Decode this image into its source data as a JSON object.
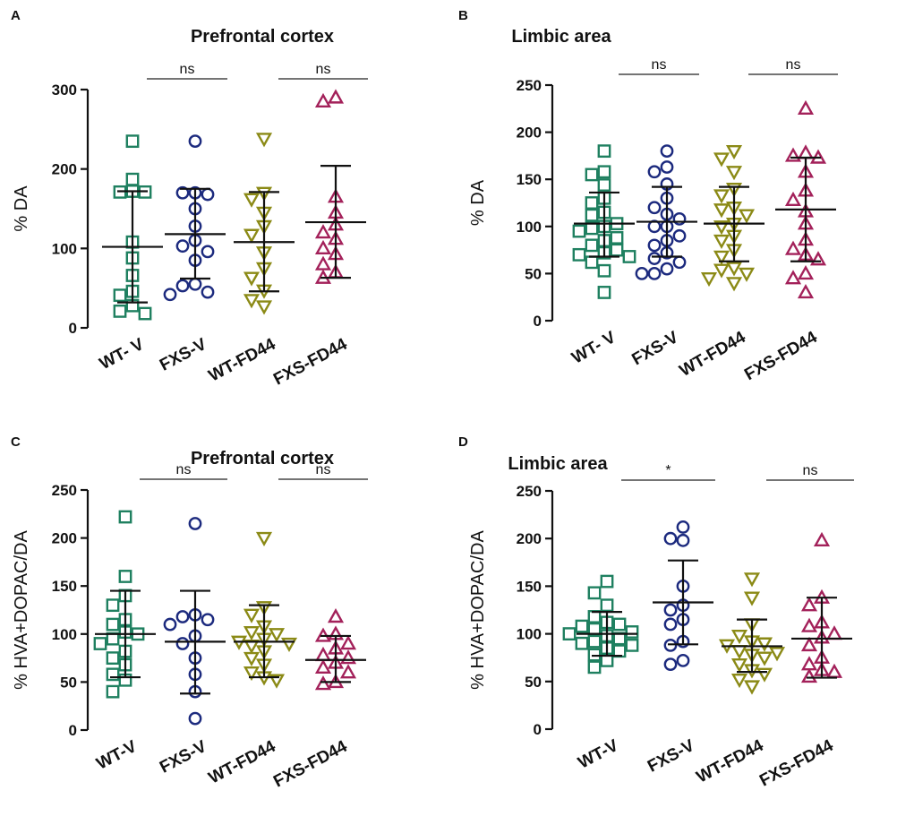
{
  "figure": {
    "panels": [
      "A",
      "B",
      "C",
      "D"
    ],
    "group_colors": {
      "WT-V": "#1f8060",
      "FXS-V": "#1c2a7e",
      "WT-FD44": "#8b8a16",
      "FXS-FD44": "#a3215a"
    },
    "group_markers": {
      "WT-V": "square",
      "FXS-V": "circle",
      "WT-FD44": "triangle-down",
      "FXS-FD44": "triangle-up"
    },
    "axis_color": "#111111"
  },
  "chart_data": [
    {
      "panel": "A",
      "type": "scatter",
      "title": "Prefrontal cortex",
      "ylabel": "% DA",
      "xlabel": "",
      "ylim": [
        0,
        300
      ],
      "yticks": [
        0,
        100,
        200,
        300
      ],
      "categories": [
        "WT- V",
        "FXS-V",
        "WT-FD44",
        "FXS-FD44"
      ],
      "series": [
        {
          "name": "WT- V",
          "values": [
            235,
            187,
            172,
            171,
            171,
            108,
            88,
            66,
            46,
            41,
            28,
            21,
            18
          ],
          "mean": 102,
          "sd_low": 32,
          "sd_high": 172
        },
        {
          "name": "FXS-V",
          "values": [
            235,
            170,
            170,
            168,
            150,
            128,
            110,
            103,
            96,
            85,
            55,
            53,
            45,
            42
          ],
          "mean": 118,
          "sd_low": 62,
          "sd_high": 175
        },
        {
          "name": "WT-FD44",
          "values": [
            238,
            170,
            162,
            145,
            128,
            117,
            95,
            75,
            63,
            47,
            35,
            27
          ],
          "mean": 108,
          "sd_low": 46,
          "sd_high": 171
        },
        {
          "name": "FXS-FD44",
          "values": [
            290,
            285,
            165,
            145,
            130,
            120,
            112,
            100,
            93,
            80,
            70,
            63
          ],
          "mean": 133,
          "sd_low": 63,
          "sd_high": 204
        }
      ],
      "comparisons": [
        {
          "groups": [
            "WT- V",
            "FXS-V"
          ],
          "label": "ns"
        },
        {
          "groups": [
            "WT-FD44",
            "FXS-FD44"
          ],
          "label": "ns"
        }
      ]
    },
    {
      "panel": "B",
      "type": "scatter",
      "title": "Limbic area",
      "ylabel": "% DA",
      "xlabel": "",
      "ylim": [
        0,
        250
      ],
      "yticks": [
        0,
        50,
        100,
        150,
        200,
        250
      ],
      "categories": [
        "WT- V",
        "FXS-V",
        "WT-FD44",
        "FXS-FD44"
      ],
      "series": [
        {
          "name": "WT- V",
          "values": [
            180,
            158,
            155,
            144,
            130,
            125,
            115,
            112,
            103,
            100,
            98,
            95,
            88,
            85,
            80,
            75,
            72,
            70,
            68,
            62,
            53,
            30
          ],
          "mean": 103,
          "sd_low": 68,
          "sd_high": 136
        },
        {
          "name": "FXS-V",
          "values": [
            180,
            163,
            158,
            145,
            130,
            120,
            113,
            108,
            100,
            100,
            90,
            85,
            80,
            72,
            66,
            62,
            55,
            50,
            50
          ],
          "mean": 105,
          "sd_low": 68,
          "sd_high": 142
        },
        {
          "name": "WT-FD44",
          "values": [
            180,
            172,
            158,
            140,
            133,
            120,
            118,
            112,
            103,
            100,
            90,
            85,
            75,
            68,
            56,
            54,
            50,
            45,
            40
          ],
          "mean": 103,
          "sd_low": 63,
          "sd_high": 142
        },
        {
          "name": "FXS-FD44",
          "values": [
            225,
            178,
            175,
            173,
            158,
            138,
            128,
            116,
            103,
            86,
            76,
            70,
            65,
            50,
            45,
            30
          ],
          "mean": 118,
          "sd_low": 63,
          "sd_high": 173
        }
      ],
      "comparisons": [
        {
          "groups": [
            "WT- V",
            "FXS-V"
          ],
          "label": "ns"
        },
        {
          "groups": [
            "WT-FD44",
            "FXS-FD44"
          ],
          "label": "ns"
        }
      ]
    },
    {
      "panel": "C",
      "type": "scatter",
      "title": "Prefrontal cortex",
      "ylabel": "% HVA+DOPAC/DA",
      "xlabel": "",
      "ylim": [
        0,
        250
      ],
      "yticks": [
        0,
        50,
        100,
        150,
        200,
        250
      ],
      "categories": [
        "WT-V",
        "FXS-V",
        "WT-FD44",
        "FXS-FD44"
      ],
      "series": [
        {
          "name": "WT-V",
          "values": [
            222,
            160,
            140,
            130,
            115,
            110,
            102,
            100,
            95,
            90,
            82,
            75,
            68,
            58,
            52,
            40
          ],
          "mean": 100,
          "sd_low": 55,
          "sd_high": 145
        },
        {
          "name": "FXS-V",
          "values": [
            215,
            120,
            118,
            115,
            110,
            98,
            90,
            75,
            58,
            40,
            12
          ],
          "mean": 92,
          "sd_low": 38,
          "sd_high": 145
        },
        {
          "name": "WT-FD44",
          "values": [
            200,
            128,
            120,
            108,
            102,
            100,
            95,
            92,
            90,
            88,
            82,
            75,
            68,
            60,
            55,
            52
          ],
          "mean": 92,
          "sd_low": 55,
          "sd_high": 130
        },
        {
          "name": "FXS-FD44",
          "values": [
            118,
            100,
            98,
            90,
            85,
            78,
            75,
            70,
            65,
            60,
            50,
            48
          ],
          "mean": 73,
          "sd_low": 50,
          "sd_high": 98
        }
      ],
      "comparisons": [
        {
          "groups": [
            "WT-V",
            "FXS-V"
          ],
          "label": "ns"
        },
        {
          "groups": [
            "WT-FD44",
            "FXS-FD44"
          ],
          "label": "ns"
        }
      ]
    },
    {
      "panel": "D",
      "type": "scatter",
      "title": "Limbic area",
      "ylabel": "% HVA+DOPAC/DA",
      "xlabel": "",
      "ylim": [
        0,
        250
      ],
      "yticks": [
        0,
        50,
        100,
        150,
        200,
        250
      ],
      "categories": [
        "WT-V",
        "FXS-V",
        "WT-FD44",
        "FXS-FD44"
      ],
      "series": [
        {
          "name": "WT-V",
          "values": [
            155,
            143,
            130,
            118,
            112,
            110,
            108,
            105,
            102,
            100,
            98,
            95,
            92,
            90,
            88,
            85,
            82,
            78,
            72,
            65
          ],
          "mean": 100,
          "sd_low": 77,
          "sd_high": 123
        },
        {
          "name": "FXS-V",
          "values": [
            212,
            200,
            198,
            150,
            130,
            125,
            115,
            110,
            92,
            88,
            72,
            68
          ],
          "mean": 133,
          "sd_low": 89,
          "sd_high": 177
        },
        {
          "name": "WT-FD44",
          "values": [
            158,
            138,
            110,
            98,
            92,
            90,
            88,
            82,
            80,
            78,
            75,
            68,
            62,
            58,
            52,
            45
          ],
          "mean": 87,
          "sd_low": 60,
          "sd_high": 115
        },
        {
          "name": "FXS-FD44",
          "values": [
            198,
            138,
            130,
            112,
            108,
            100,
            96,
            88,
            75,
            68,
            62,
            60,
            55
          ],
          "mean": 95,
          "sd_low": 54,
          "sd_high": 138
        }
      ],
      "comparisons": [
        {
          "groups": [
            "WT-V",
            "FXS-V"
          ],
          "label": "*"
        },
        {
          "groups": [
            "WT-FD44",
            "FXS-FD44"
          ],
          "label": "ns"
        }
      ]
    }
  ]
}
